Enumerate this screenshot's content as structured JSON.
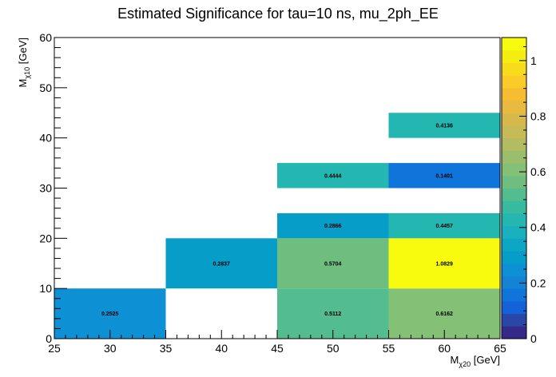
{
  "chart_data": {
    "type": "heatmap",
    "title": "Estimated Significance for tau=10 ns, mu_2ph_EE",
    "xlabel": {
      "main": "M",
      "sub": "χ20",
      "unit": " [GeV]"
    },
    "ylabel": {
      "main": "M",
      "sub": "χ10",
      "unit": " [GeV]"
    },
    "xlim": [
      25,
      65
    ],
    "ylim": [
      0,
      60
    ],
    "zlim": [
      0,
      1.0829
    ],
    "x_ticks": [
      25,
      30,
      35,
      40,
      45,
      50,
      55,
      60,
      65
    ],
    "y_ticks": [
      0,
      10,
      20,
      30,
      40,
      50,
      60
    ],
    "z_ticks": [
      0,
      0.2,
      0.4,
      0.6,
      0.8,
      1
    ],
    "x_tick_labels": [
      "25",
      "30",
      "35",
      "40",
      "45",
      "50",
      "55",
      "60",
      "65"
    ],
    "y_tick_labels": [
      "0",
      "10",
      "20",
      "30",
      "40",
      "50",
      "60"
    ],
    "z_tick_labels": [
      "0",
      "0.2",
      "0.4",
      "0.6",
      "0.8",
      "1"
    ],
    "cells": [
      {
        "x": [
          25,
          35
        ],
        "y": [
          0,
          10
        ],
        "value": 0.2525,
        "label": "0.2525"
      },
      {
        "x": [
          45,
          55
        ],
        "y": [
          0,
          10
        ],
        "value": 0.5112,
        "label": "0.5112"
      },
      {
        "x": [
          55,
          65
        ],
        "y": [
          0,
          10
        ],
        "value": 0.6162,
        "label": "0.6162"
      },
      {
        "x": [
          35,
          45
        ],
        "y": [
          10,
          20
        ],
        "value": 0.2837,
        "label": "0.2837"
      },
      {
        "x": [
          45,
          55
        ],
        "y": [
          10,
          20
        ],
        "value": 0.5704,
        "label": "0.5704"
      },
      {
        "x": [
          55,
          65
        ],
        "y": [
          10,
          20
        ],
        "value": 1.0829,
        "label": "1.0829"
      },
      {
        "x": [
          45,
          55
        ],
        "y": [
          20,
          25
        ],
        "value": 0.2866,
        "label": "0.2866"
      },
      {
        "x": [
          55,
          65
        ],
        "y": [
          20,
          25
        ],
        "value": 0.4457,
        "label": "0.4457"
      },
      {
        "x": [
          45,
          55
        ],
        "y": [
          30,
          35
        ],
        "value": 0.4444,
        "label": "0.4444"
      },
      {
        "x": [
          55,
          65
        ],
        "y": [
          30,
          35
        ],
        "value": 0.1401,
        "label": "0.1401"
      },
      {
        "x": [
          55,
          65
        ],
        "y": [
          40,
          45
        ],
        "value": 0.4136,
        "label": "0.4136"
      }
    ],
    "palette": [
      "#352a87",
      "#2a46a6",
      "#1462d7",
      "#0f75da",
      "#1383d4",
      "#0d91d4",
      "#069dc9",
      "#0ca7c5",
      "#1bb0be",
      "#24b6b0",
      "#37ba9f",
      "#53bd8f",
      "#6fbe80",
      "#84c075",
      "#9bbe6c",
      "#b3bc60",
      "#c6bb57",
      "#d7b94b",
      "#e8ba3f",
      "#f7bd32",
      "#fbcc28",
      "#f8dc1c",
      "#f5ec12",
      "#f9fb0e"
    ]
  }
}
